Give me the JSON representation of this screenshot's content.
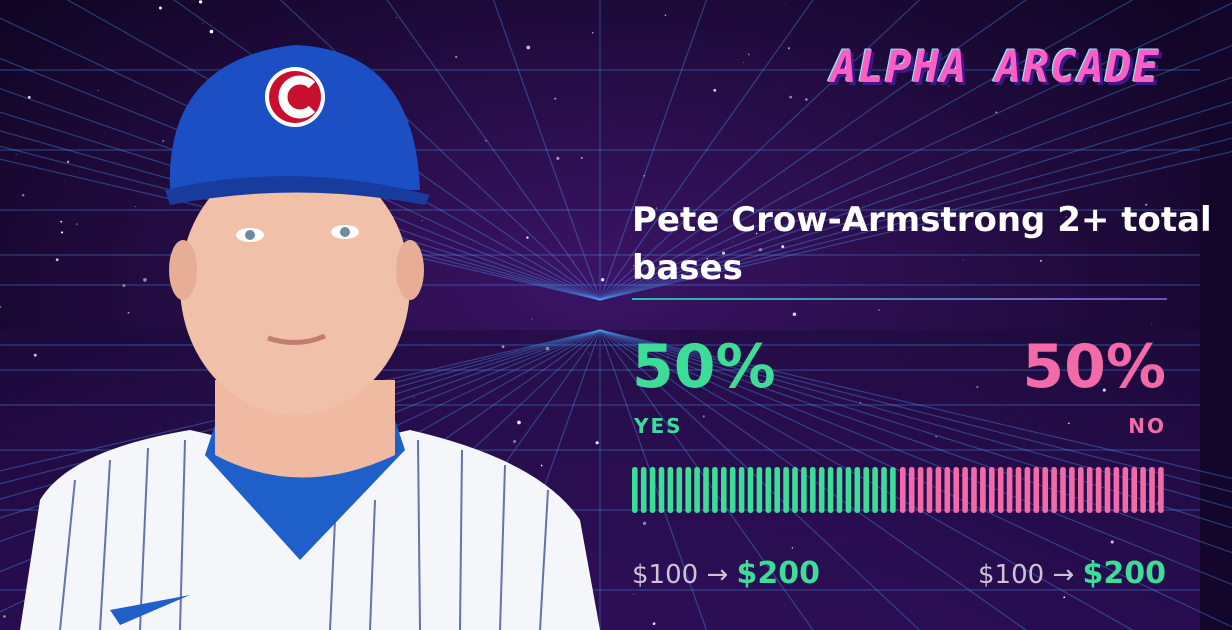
{
  "brand": "ALPHA ARCADE",
  "market": {
    "title": "Pete Crow-Armstrong 2+ total bases",
    "outcomes": [
      {
        "name": "YES",
        "percent": 50,
        "percent_label": "50%",
        "color": "#3ddc97",
        "stake": "$100",
        "payout": "$200"
      },
      {
        "name": "NO",
        "percent": 50,
        "percent_label": "50%",
        "color": "#f26ba8",
        "stake": "$100",
        "payout": "$200"
      }
    ]
  }
}
